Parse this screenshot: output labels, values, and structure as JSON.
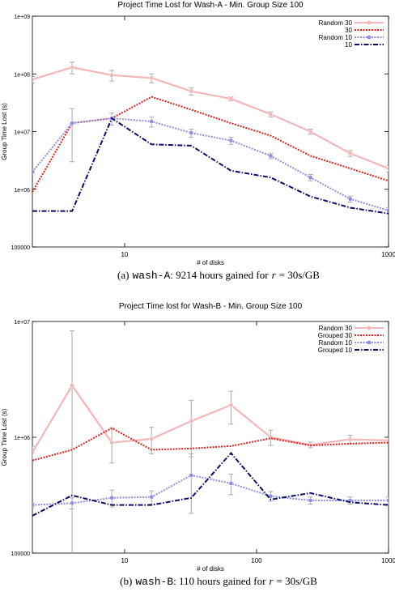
{
  "chart_data": [
    {
      "type": "line",
      "title": "Project Time Lost for Wash-A - Min. Group Size 100",
      "x_label": "# of disks",
      "y_label": "Group Time Lost (s)",
      "x": [
        2,
        4,
        8,
        16,
        32,
        64,
        128,
        256,
        512,
        1000
      ],
      "xlim": [
        2,
        1000
      ],
      "xticks": [
        10,
        1000
      ],
      "log_x": true,
      "ylim": [
        100000,
        1000000000
      ],
      "log_y": true,
      "yticks": [
        100000,
        {
          "value": 1000000,
          "label": "1e+06"
        },
        {
          "value": 10000000,
          "label": "1e+07"
        },
        {
          "value": 100000000,
          "label": "1e+08"
        },
        {
          "value": 1000000000,
          "label": "1e+09"
        }
      ],
      "legend": "top-right",
      "series": [
        {
          "name": "Random 30",
          "color": "#f4b6b6",
          "line_style": "solid",
          "markers": true,
          "values": [
            80000000,
            130000000,
            95000000,
            85000000,
            50000000,
            37000000,
            20000000,
            10000000,
            4200000,
            2300000
          ],
          "errors": [
            10000000,
            30000000,
            20000000,
            15000000,
            7000000,
            3000000,
            2000000,
            1000000,
            500000,
            300000
          ]
        },
        {
          "name": "30",
          "color": "#e3201b",
          "line_style": "dotted",
          "markers": false,
          "values": [
            900000,
            14000000,
            17000000,
            40000000,
            24000000,
            14000000,
            8500000,
            3800000,
            2300000,
            1400000
          ]
        },
        {
          "name": "Random 10",
          "color": "#8f8fe0",
          "line_style": "dotted",
          "markers": true,
          "values": [
            2000000,
            14000000,
            17000000,
            15000000,
            9500000,
            7000000,
            3800000,
            1600000,
            680000,
            430000
          ],
          "errors": [
            100000,
            11000000,
            4000000,
            3000000,
            1500000,
            1000000,
            400000,
            200000,
            80000,
            50000
          ]
        },
        {
          "name": "10",
          "color": "#0b0b6b",
          "line_style": "dashdot",
          "markers": false,
          "values": [
            420000,
            420000,
            17000000,
            6000000,
            5700000,
            2100000,
            1600000,
            750000,
            480000,
            380000
          ]
        }
      ],
      "caption": [
        "(a)",
        "wash-A",
        ": 9214 hours gained for",
        "r",
        "= 30s/GB"
      ]
    },
    {
      "type": "line",
      "title": "Project Time lost for Wash-B - Min. Group Size 100",
      "x_label": "# of disks",
      "y_label": "Group Time Lost (s)",
      "x": [
        2,
        4,
        8,
        16,
        32,
        64,
        128,
        256,
        512,
        1000
      ],
      "xlim": [
        2,
        1000
      ],
      "xticks": [
        10,
        100,
        1000
      ],
      "log_x": true,
      "ylim": [
        100000,
        10000000
      ],
      "log_y": true,
      "yticks": [
        100000,
        {
          "value": 1000000,
          "label": "1e+06"
        },
        {
          "value": 10000000,
          "label": "1e+07"
        }
      ],
      "legend": "top-right",
      "series": [
        {
          "name": "Random 30",
          "color": "#f4b6b6",
          "line_style": "solid",
          "markers": true,
          "values": [
            740000,
            2800000,
            900000,
            970000,
            1380000,
            1900000,
            1000000,
            860000,
            960000,
            940000
          ],
          "errors": [
            100000,
            5500000,
            300000,
            250000,
            700000,
            600000,
            150000,
            50000,
            80000,
            50000
          ]
        },
        {
          "name": "Grouped 30",
          "color": "#e3201b",
          "line_style": "dotted",
          "markers": false,
          "values": [
            630000,
            780000,
            1200000,
            780000,
            800000,
            840000,
            980000,
            850000,
            880000,
            900000
          ]
        },
        {
          "name": "Random 10",
          "color": "#8f8fe0",
          "line_style": "dotted",
          "markers": true,
          "values": [
            260000,
            270000,
            300000,
            305000,
            470000,
            400000,
            310000,
            285000,
            285000,
            285000
          ],
          "errors": [
            10000,
            30000,
            50000,
            40000,
            250000,
            80000,
            30000,
            20000,
            20000,
            20000
          ]
        },
        {
          "name": "Grouped 10",
          "color": "#0b0b6b",
          "line_style": "dashdot",
          "markers": false,
          "values": [
            210000,
            315000,
            260000,
            260000,
            300000,
            730000,
            290000,
            330000,
            275000,
            260000
          ]
        }
      ],
      "caption": [
        "(b)",
        "wash-B",
        ": 110 hours gained for",
        "r",
        "= 30s/GB"
      ]
    }
  ]
}
